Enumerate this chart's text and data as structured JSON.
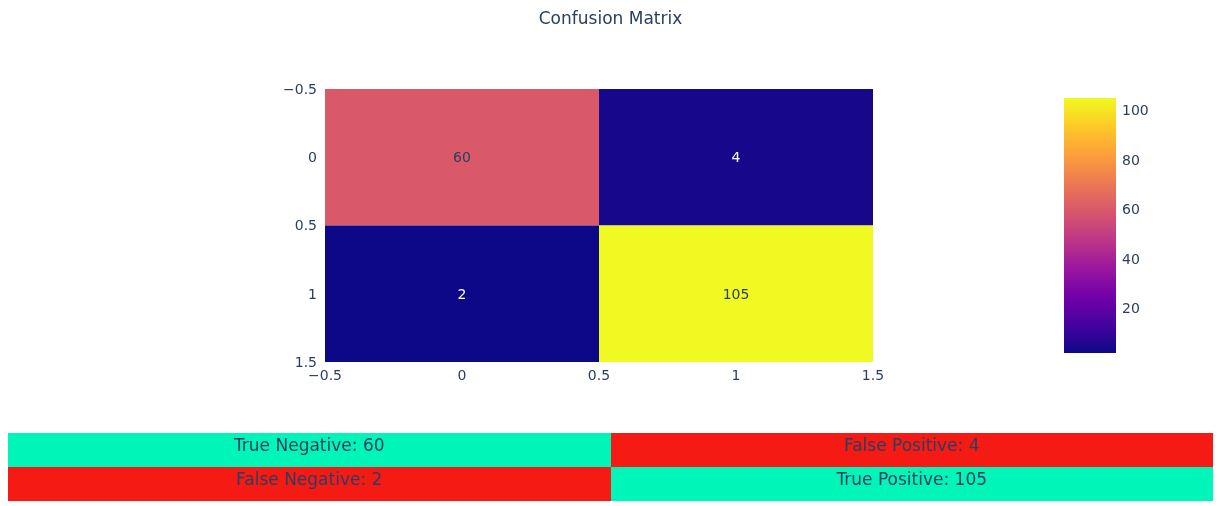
{
  "chart_data": [
    {
      "type": "heatmap",
      "title": "Confusion Matrix",
      "cells": [
        [
          60,
          4
        ],
        [
          2,
          105
        ]
      ],
      "data_labels": true,
      "xlim": [
        -0.5,
        1.5
      ],
      "xticks": [
        -0.5,
        0,
        0.5,
        1,
        1.5
      ],
      "ylim": [
        1.5,
        -0.5
      ],
      "yticks": [
        -0.5,
        0,
        0.5,
        1,
        1.5
      ],
      "clim": [
        2,
        105
      ],
      "cticks": [
        20,
        40,
        60,
        80,
        100
      ]
    },
    {
      "type": "other",
      "annotations": [
        "True Negative: 60",
        "False Positive: 4",
        "False Negative: 2",
        "True Positive: 105"
      ],
      "colors": [
        "#00f5b8",
        "#f51a14",
        "#f51a14",
        "#00f5b8"
      ]
    }
  ]
}
